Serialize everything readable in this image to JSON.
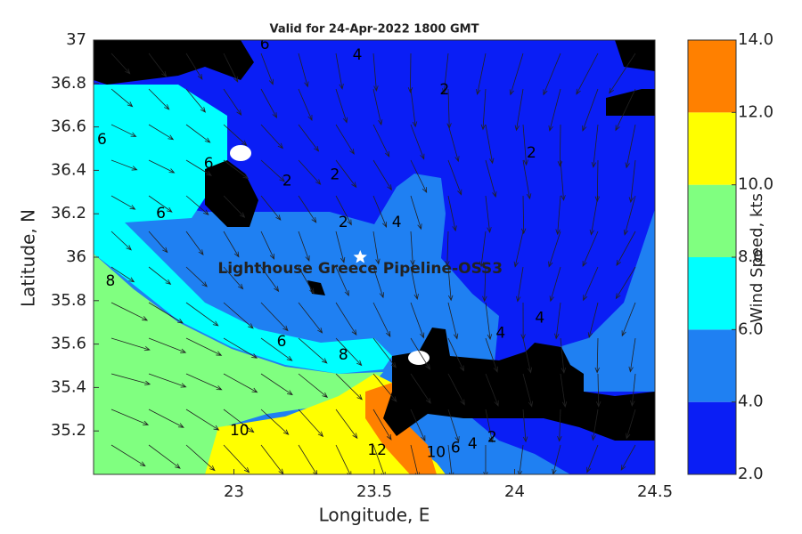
{
  "title": "Valid for 24-Apr-2022 1800 GMT",
  "x_axis": {
    "label": "Longitude, E",
    "lim": [
      22.5,
      24.5
    ],
    "ticks": [
      23,
      23.5,
      24,
      24.5
    ]
  },
  "y_axis": {
    "label": "Latitude, N",
    "lim": [
      35,
      37
    ],
    "ticks": [
      35.2,
      35.4,
      35.6,
      35.8,
      36,
      36.2,
      36.4,
      36.6,
      36.8,
      37
    ]
  },
  "colorbar": {
    "label": "Wind Speed, kts",
    "lim": [
      2,
      14
    ],
    "ticks": [
      {
        "value": 2,
        "label": "2.0"
      },
      {
        "value": 4,
        "label": "4.0"
      },
      {
        "value": 6,
        "label": "6.0"
      },
      {
        "value": 8,
        "label": "8.0"
      },
      {
        "value": 10,
        "label": "10.0"
      },
      {
        "value": 12,
        "label": "12.0"
      },
      {
        "value": 14,
        "label": "14.0"
      }
    ],
    "colors": [
      "#0a1ef5",
      "#1f80f2",
      "#00ffff",
      "#80ff80",
      "#ffff00",
      "#ff8000"
    ]
  },
  "site": {
    "name": "Lighthouse Greece Pipeline-OSS3",
    "lon": 23.45,
    "lat": 36.0
  },
  "contour_labels": [
    {
      "value": 6,
      "lon": 23.11,
      "lat": 36.98
    },
    {
      "value": 4,
      "lon": 23.44,
      "lat": 36.93
    },
    {
      "value": 2,
      "lon": 23.75,
      "lat": 36.77
    },
    {
      "value": 6,
      "lon": 22.53,
      "lat": 36.54
    },
    {
      "value": 6,
      "lon": 22.91,
      "lat": 36.43
    },
    {
      "value": 2,
      "lon": 23.19,
      "lat": 36.35
    },
    {
      "value": 2,
      "lon": 23.36,
      "lat": 36.38
    },
    {
      "value": 6,
      "lon": 22.74,
      "lat": 36.2
    },
    {
      "value": 2,
      "lon": 23.39,
      "lat": 36.16
    },
    {
      "value": 4,
      "lon": 23.58,
      "lat": 36.16
    },
    {
      "value": 2,
      "lon": 24.06,
      "lat": 36.48
    },
    {
      "value": 8,
      "lon": 22.56,
      "lat": 35.89
    },
    {
      "value": 6,
      "lon": 23.17,
      "lat": 35.61
    },
    {
      "value": 8,
      "lon": 23.39,
      "lat": 35.55
    },
    {
      "value": 4,
      "lon": 23.95,
      "lat": 35.65
    },
    {
      "value": 4,
      "lon": 24.09,
      "lat": 35.72
    },
    {
      "value": 10,
      "lon": 23.02,
      "lat": 35.2
    },
    {
      "value": 12,
      "lon": 23.51,
      "lat": 35.11
    },
    {
      "value": 10,
      "lon": 23.72,
      "lat": 35.1
    },
    {
      "value": 6,
      "lon": 23.79,
      "lat": 35.12
    },
    {
      "value": 4,
      "lon": 23.85,
      "lat": 35.14
    },
    {
      "value": 2,
      "lon": 23.92,
      "lat": 35.17
    }
  ]
}
